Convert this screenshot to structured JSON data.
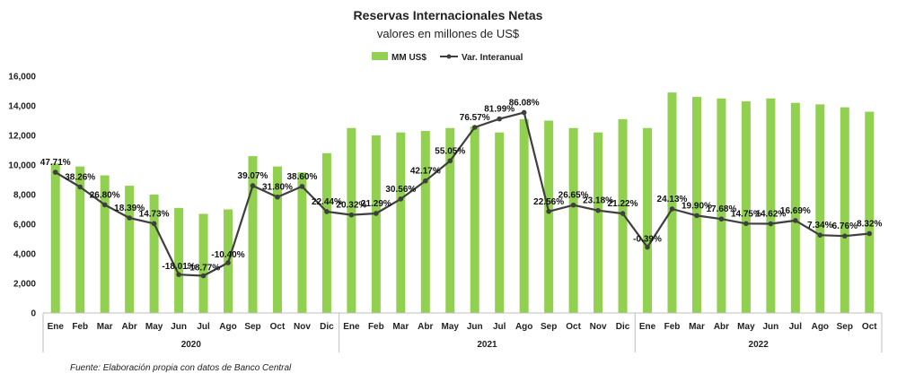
{
  "chart_data": {
    "type": "bar",
    "title": "Reservas Internacionales Netas",
    "subtitle": "valores en millones de US$",
    "source": "Fuente: Elaboración propia con datos de Banco Central",
    "categories": [
      "Ene",
      "Feb",
      "Mar",
      "Abr",
      "May",
      "Jun",
      "Jul",
      "Ago",
      "Sep",
      "Oct",
      "Nov",
      "Dic",
      "Ene",
      "Feb",
      "Mar",
      "Abr",
      "May",
      "Jun",
      "Jul",
      "Ago",
      "Sep",
      "Oct",
      "Nov",
      "Dic",
      "Ene",
      "Feb",
      "Mar",
      "Abr",
      "May",
      "Jun",
      "Jul",
      "Ago",
      "Sep",
      "Oct"
    ],
    "years": [
      {
        "label": "2020",
        "months": 12
      },
      {
        "label": "2021",
        "months": 12
      },
      {
        "label": "2022",
        "months": 10
      }
    ],
    "y_ticks": [
      "0",
      "2,000",
      "4,000",
      "6,000",
      "8,000",
      "10,000",
      "12,000",
      "14,000",
      "16,000"
    ],
    "ylim": [
      0,
      16000
    ],
    "legend_position": "top-center",
    "colors": {
      "bars": "#92D050",
      "line": "#3F3F3F"
    },
    "series": [
      {
        "name": "MM US$",
        "type": "bar",
        "values": [
          10100,
          9900,
          9300,
          8600,
          8000,
          7100,
          6700,
          7000,
          10600,
          9900,
          9500,
          10800,
          12500,
          12000,
          12200,
          12300,
          12500,
          12600,
          12200,
          13100,
          13000,
          12500,
          12200,
          13100,
          12500,
          14900,
          14600,
          14500,
          14300,
          14500,
          14200,
          14100,
          13900,
          13600
        ]
      },
      {
        "name": "Var. Interanual",
        "type": "line",
        "values": [
          47.71,
          38.26,
          26.8,
          18.39,
          14.73,
          -18.01,
          -18.77,
          -10.4,
          39.07,
          31.8,
          38.6,
          22.44,
          20.32,
          21.29,
          30.56,
          42.17,
          55.05,
          76.57,
          81.99,
          86.08,
          22.56,
          26.65,
          23.18,
          21.22,
          -0.39,
          24.13,
          19.9,
          17.68,
          14.75,
          14.62,
          16.69,
          7.34,
          6.76,
          8.32
        ],
        "labels": [
          "47.71%",
          "38.26%",
          "26.80%",
          "18.39%",
          "14.73%",
          "-18.01%",
          "-18.77%",
          "-10.40%",
          "39.07%",
          "31.80%",
          "38.60%",
          "22.44%",
          "20.32%",
          "21.29%",
          "30.56%",
          "42.17%",
          "55.05%",
          "76.57%",
          "81.99%",
          "86.08%",
          "22.56%",
          "26.65%",
          "23.18%",
          "21.22%",
          "-0.39%",
          "24.13%",
          "19.90%",
          "17.68%",
          "14.75%",
          "14.62%",
          "16.69%",
          "7.34%",
          "6.76%",
          "8.32%"
        ]
      }
    ]
  }
}
